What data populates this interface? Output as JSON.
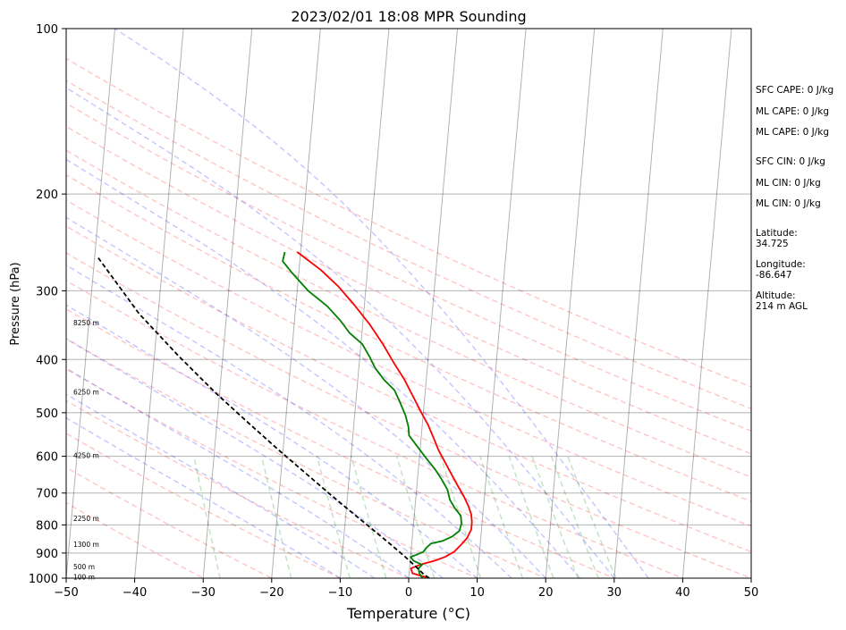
{
  "chart_data": {
    "type": "line",
    "title": "2023/02/01 18:08 MPR Sounding",
    "xlabel": "Temperature (°C)",
    "ylabel": "Pressure (hPa)",
    "xlim": [
      -50,
      50
    ],
    "ylim": [
      1000,
      100
    ],
    "y_scale": "log",
    "x_ticks": [
      -50,
      -40,
      -30,
      -20,
      -10,
      0,
      10,
      20,
      30,
      40,
      50
    ],
    "x_tick_labels": [
      "−50",
      "−40",
      "−30",
      "−20",
      "−10",
      "0",
      "10",
      "20",
      "30",
      "40",
      "50"
    ],
    "y_ticks": [
      100,
      200,
      300,
      400,
      500,
      600,
      700,
      800,
      900,
      1000
    ],
    "y_tick_labels": [
      "100",
      "200",
      "300",
      "400",
      "500",
      "600",
      "700",
      "800",
      "900",
      "1000"
    ],
    "grid": true,
    "series": [
      {
        "color": "#ff0000",
        "points": [
          [
            3.0,
            1000
          ],
          [
            0.5,
            980
          ],
          [
            0.2,
            960
          ],
          [
            1.5,
            945
          ],
          [
            3.5,
            930
          ],
          [
            5.0,
            915
          ],
          [
            6.3,
            895
          ],
          [
            7.2,
            870
          ],
          [
            8.0,
            845
          ],
          [
            8.5,
            815
          ],
          [
            8.5,
            790
          ],
          [
            8.3,
            765
          ],
          [
            7.8,
            740
          ],
          [
            7.0,
            710
          ],
          [
            6.0,
            680
          ],
          [
            5.0,
            650
          ],
          [
            3.8,
            615
          ],
          [
            2.7,
            585
          ],
          [
            1.8,
            555
          ],
          [
            0.8,
            525
          ],
          [
            -0.5,
            495
          ],
          [
            -1.8,
            465
          ],
          [
            -3.2,
            435
          ],
          [
            -5.0,
            405
          ],
          [
            -6.8,
            375
          ],
          [
            -9.0,
            345
          ],
          [
            -11.5,
            318
          ],
          [
            -14.0,
            295
          ],
          [
            -16.8,
            275
          ],
          [
            -20.5,
            255
          ]
        ]
      },
      {
        "color": "#008000",
        "points": [
          [
            2.0,
            1000
          ],
          [
            1.5,
            980
          ],
          [
            1.3,
            960
          ],
          [
            1.8,
            945
          ],
          [
            0.5,
            930
          ],
          [
            0.0,
            915
          ],
          [
            1.0,
            905
          ],
          [
            1.8,
            895
          ],
          [
            2.2,
            880
          ],
          [
            2.8,
            865
          ],
          [
            4.5,
            855
          ],
          [
            5.8,
            840
          ],
          [
            6.8,
            820
          ],
          [
            7.0,
            795
          ],
          [
            6.8,
            770
          ],
          [
            5.8,
            745
          ],
          [
            5.0,
            720
          ],
          [
            4.5,
            690
          ],
          [
            3.5,
            660
          ],
          [
            2.5,
            635
          ],
          [
            1.0,
            605
          ],
          [
            -0.5,
            575
          ],
          [
            -1.8,
            550
          ],
          [
            -2.0,
            530
          ],
          [
            -2.6,
            505
          ],
          [
            -3.5,
            480
          ],
          [
            -4.5,
            455
          ],
          [
            -6.2,
            435
          ],
          [
            -7.6,
            415
          ],
          [
            -8.6,
            395
          ],
          [
            -9.8,
            375
          ],
          [
            -11.8,
            358
          ],
          [
            -13.3,
            340
          ],
          [
            -15.4,
            320
          ],
          [
            -18.4,
            300
          ],
          [
            -21.0,
            278
          ],
          [
            -22.5,
            265
          ],
          [
            -22.3,
            255
          ]
        ]
      },
      {
        "color": "#000000",
        "dashed": true,
        "points": [
          [
            3.0,
            1000
          ],
          [
            2.2,
            985
          ],
          [
            1.0,
            955
          ],
          [
            -1.0,
            910
          ],
          [
            -3.5,
            860
          ],
          [
            -6.3,
            808
          ],
          [
            -9.4,
            755
          ],
          [
            -12.8,
            700
          ],
          [
            -16.5,
            643
          ],
          [
            -20.6,
            585
          ],
          [
            -25.3,
            523
          ],
          [
            -30.6,
            460
          ],
          [
            -36.4,
            395
          ],
          [
            -42.8,
            330
          ],
          [
            -49.6,
            260
          ]
        ]
      }
    ],
    "height_labels": [
      {
        "text": "100 m",
        "p": 994
      },
      {
        "text": "500 m",
        "p": 953
      },
      {
        "text": "1300 m",
        "p": 868
      },
      {
        "text": "2250 m",
        "p": 778
      },
      {
        "text": "4250 m",
        "p": 598
      },
      {
        "text": "6250 m",
        "p": 458
      },
      {
        "text": "8250 m",
        "p": 343
      }
    ],
    "dry_adiabats_theta_c": [
      -30,
      -20,
      -10,
      0,
      10,
      20,
      30,
      40,
      50,
      60,
      70,
      80,
      90,
      100,
      110,
      120,
      130
    ],
    "moist_adiabats_t1000_c": [
      -10,
      -5,
      0,
      5,
      10,
      15,
      20,
      25,
      30,
      35
    ],
    "mixing_ratios_gkg": [
      0.4,
      1,
      2,
      3,
      5,
      8,
      12,
      16,
      20,
      24,
      28
    ]
  },
  "info": {
    "sfc_cape": "SFC CAPE: 0 J/kg",
    "ml_cape_1": "ML CAPE: 0 J/kg",
    "ml_cape_2": "ML CAPE: 0 J/kg",
    "sfc_cin": "SFC CIN: 0 J/kg",
    "ml_cin_1": "ML CIN: 0 J/kg",
    "ml_cin_2": "ML CIN: 0 J/kg",
    "latitude_label": "Latitude:",
    "latitude_value": "34.725",
    "longitude_label": "Longitude:",
    "longitude_value": "-86.647",
    "altitude_label": "Altitude:",
    "altitude_value": "214 m AGL"
  }
}
